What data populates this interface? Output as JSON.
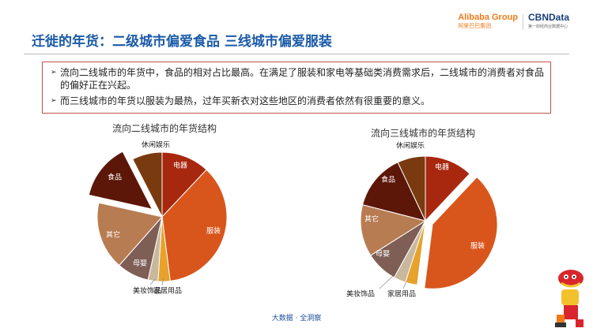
{
  "header": {
    "title": "迁徙的年货：二级城市偏爱食品 三线城市偏爱服装",
    "logo_alibaba": "Alibaba Group",
    "logo_alibaba_sub": "阿里巴巴集团",
    "logo_cbn": "CBNData",
    "logo_cbn_sub": "第一财经商业数据中心"
  },
  "bullets": [
    "流向二线城市的年货中，食品的相对占比最高。在满足了服装和家电等基础类消费需求后，二线城市的消费者对食品的偏好正在兴起。",
    "而三线城市的年货以服装为最热，过年买新衣对这些地区的消费者依然有很重要的意义。"
  ],
  "footer": "大数据 · 全洞察",
  "chart_data": [
    {
      "type": "pie",
      "title": "流向二线城市的年货结构",
      "exploded": "食品",
      "slices": [
        {
          "name": "电器",
          "value": 12,
          "color": "#a8280f"
        },
        {
          "name": "服装",
          "value": 36,
          "color": "#d8561c"
        },
        {
          "name": "家居用品",
          "value": 3,
          "color": "#e7a22b"
        },
        {
          "name": "美妆饰品",
          "value": 2.5,
          "color": "#c9b89e"
        },
        {
          "name": "母婴",
          "value": 8,
          "color": "#7e5e55"
        },
        {
          "name": "其它",
          "value": 17,
          "color": "#b87c52"
        },
        {
          "name": "食品",
          "value": 14,
          "color": "#5c1709"
        },
        {
          "name": "休闲娱乐",
          "value": 7.5,
          "color": "#7a3a10"
        }
      ]
    },
    {
      "type": "pie",
      "title": "流向三线城市的年货结构",
      "exploded": "服装",
      "slices": [
        {
          "name": "电器",
          "value": 12,
          "color": "#a8280f"
        },
        {
          "name": "服装",
          "value": 40,
          "color": "#d8561c"
        },
        {
          "name": "家居用品",
          "value": 3,
          "color": "#e7a22b"
        },
        {
          "name": "美妆饰品",
          "value": 3,
          "color": "#c9b89e"
        },
        {
          "name": "母婴",
          "value": 8,
          "color": "#7e5e55"
        },
        {
          "name": "其它",
          "value": 13,
          "color": "#b87c52"
        },
        {
          "name": "食品",
          "value": 14,
          "color": "#5c1709"
        },
        {
          "name": "休闲娱乐",
          "value": 7,
          "color": "#7a3a10"
        }
      ]
    }
  ]
}
